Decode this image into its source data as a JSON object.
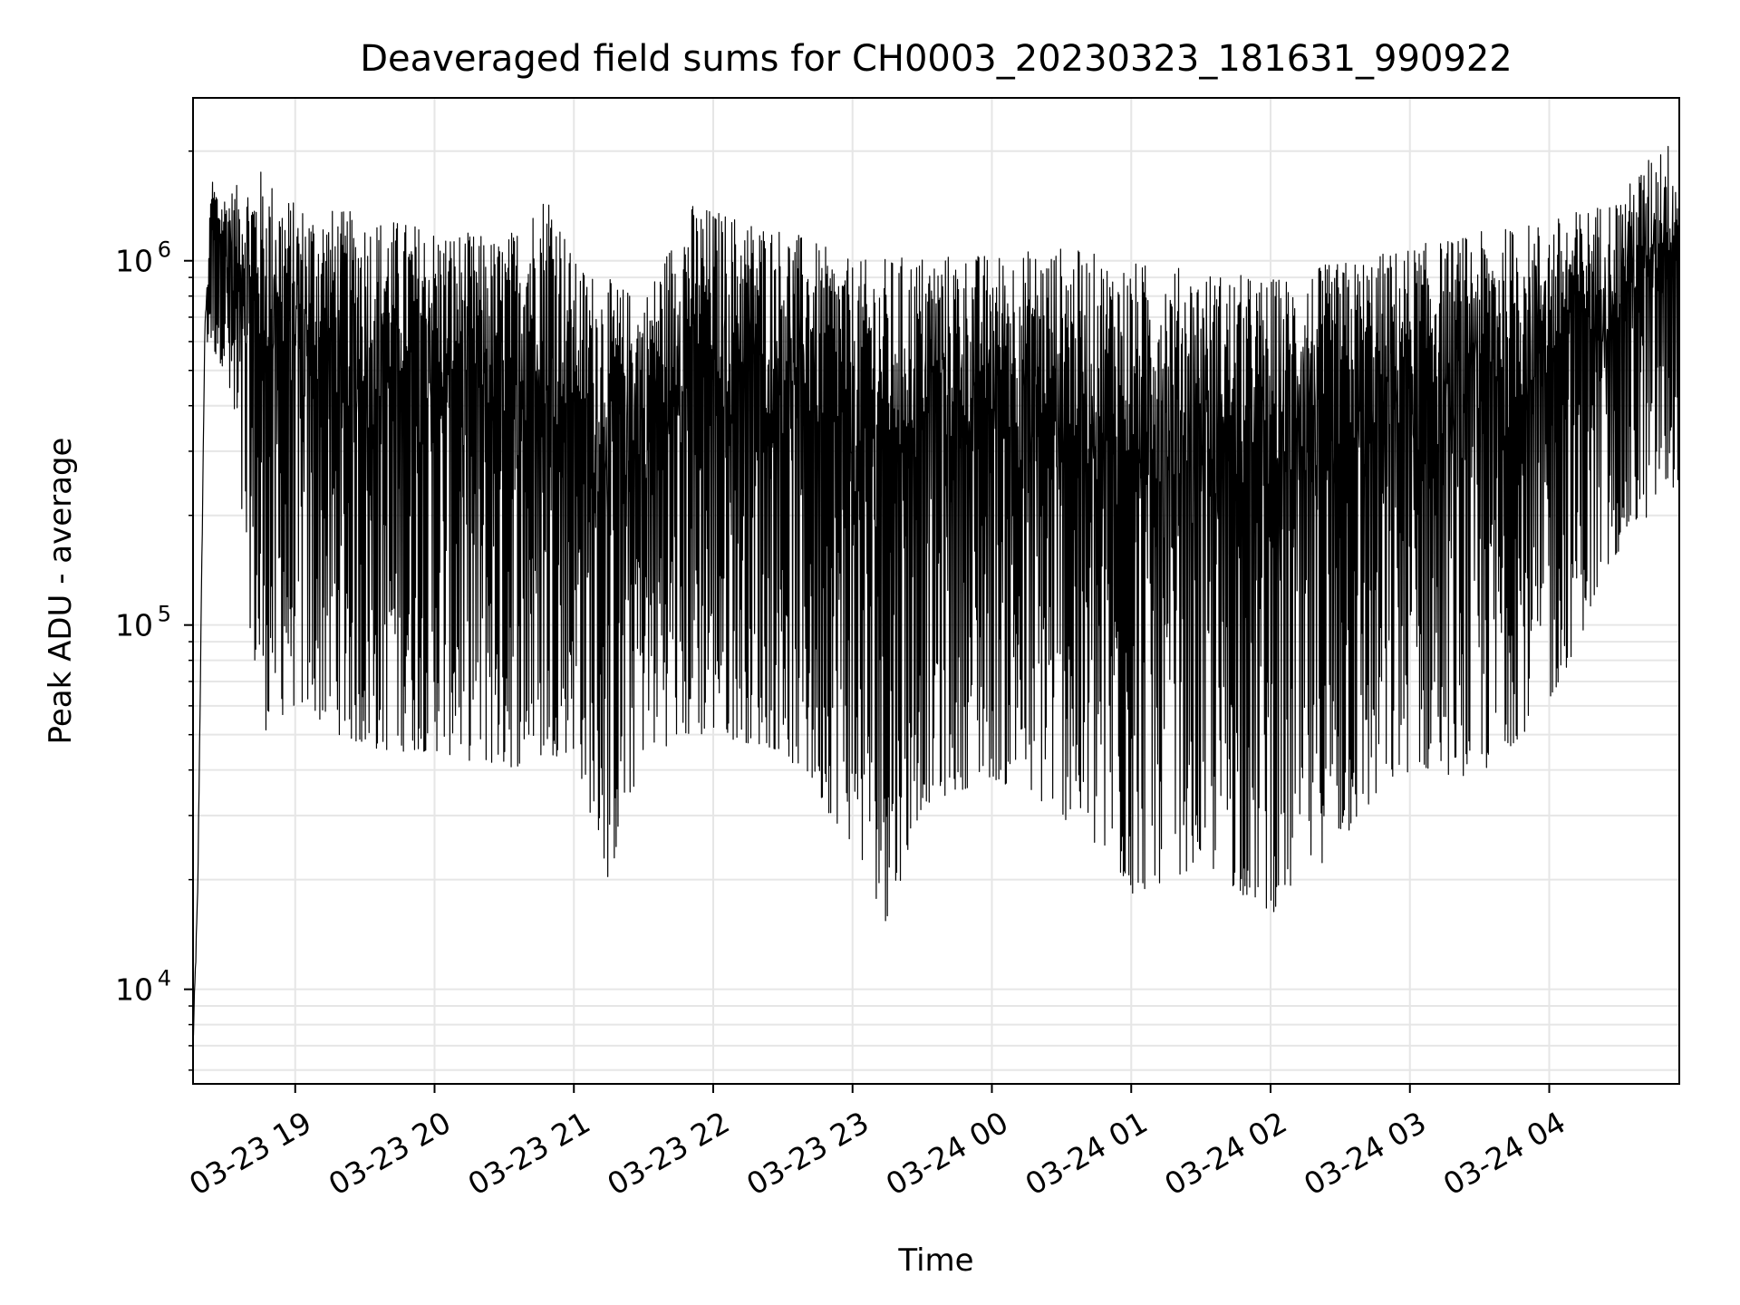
{
  "chart_data": {
    "type": "line",
    "title": "Deaveraged field sums for CH0003_20230323_181631_990922",
    "xlabel": "Time",
    "ylabel": "Peak ADU - average",
    "yscale": "log",
    "ylim": [
      5500,
      2800000
    ],
    "xlim": [
      "2023-03-23T18:16",
      "2023-03-24T04:56"
    ],
    "grid": true,
    "line_color": "#000000",
    "grid_color": "#e6e6e6",
    "xticks": [
      {
        "value": "2023-03-23T19:00",
        "label": "03-23 19"
      },
      {
        "value": "2023-03-23T20:00",
        "label": "03-23 20"
      },
      {
        "value": "2023-03-23T21:00",
        "label": "03-23 21"
      },
      {
        "value": "2023-03-23T22:00",
        "label": "03-23 22"
      },
      {
        "value": "2023-03-23T23:00",
        "label": "03-23 23"
      },
      {
        "value": "2023-03-24T00:00",
        "label": "03-24 00"
      },
      {
        "value": "2023-03-24T01:00",
        "label": "03-24 01"
      },
      {
        "value": "2023-03-24T02:00",
        "label": "03-24 02"
      },
      {
        "value": "2023-03-24T03:00",
        "label": "03-24 03"
      },
      {
        "value": "2023-03-24T04:00",
        "label": "03-24 04"
      }
    ],
    "yticks": [
      {
        "value": 10000,
        "base": "10",
        "exp": "4"
      },
      {
        "value": 100000,
        "base": "10",
        "exp": "5"
      },
      {
        "value": 1000000,
        "base": "10",
        "exp": "6"
      }
    ],
    "series": [
      {
        "style": "dense oscillating line",
        "envelope_upper": [
          [
            "2023-03-23T18:16",
            7000
          ],
          [
            "2023-03-23T18:18",
            18000
          ],
          [
            "2023-03-23T18:21",
            600000
          ],
          [
            "2023-03-23T18:24",
            1750000
          ],
          [
            "2023-03-23T18:28",
            1500000
          ],
          [
            "2023-03-23T18:45",
            1800000
          ],
          [
            "2023-03-23T19:00",
            1450000
          ],
          [
            "2023-03-23T19:30",
            1350000
          ],
          [
            "2023-03-23T20:00",
            1250000
          ],
          [
            "2023-03-23T20:30",
            1150000
          ],
          [
            "2023-03-23T20:50",
            1650000
          ],
          [
            "2023-03-23T21:00",
            1000000
          ],
          [
            "2023-03-23T21:30",
            800000
          ],
          [
            "2023-03-23T21:50",
            1450000
          ],
          [
            "2023-03-23T22:30",
            1250000
          ],
          [
            "2023-03-23T23:00",
            1000000
          ],
          [
            "2023-03-23T23:30",
            1050000
          ],
          [
            "2023-03-24T00:00",
            1050000
          ],
          [
            "2023-03-24T00:30",
            1100000
          ],
          [
            "2023-03-24T01:00",
            1000000
          ],
          [
            "2023-03-24T01:30",
            950000
          ],
          [
            "2023-03-24T02:00",
            900000
          ],
          [
            "2023-03-24T02:30",
            1000000
          ],
          [
            "2023-03-24T03:00",
            1100000
          ],
          [
            "2023-03-24T03:30",
            1200000
          ],
          [
            "2023-03-24T04:00",
            1300000
          ],
          [
            "2023-03-24T04:30",
            1500000
          ],
          [
            "2023-03-24T04:50",
            2200000
          ],
          [
            "2023-03-24T04:56",
            1800000
          ]
        ],
        "envelope_lower": [
          [
            "2023-03-23T18:16",
            7000
          ],
          [
            "2023-03-23T18:21",
            600000
          ],
          [
            "2023-03-23T18:30",
            500000
          ],
          [
            "2023-03-23T18:45",
            50000
          ],
          [
            "2023-03-23T19:00",
            60000
          ],
          [
            "2023-03-23T19:30",
            45000
          ],
          [
            "2023-03-23T20:00",
            45000
          ],
          [
            "2023-03-23T20:30",
            40000
          ],
          [
            "2023-03-23T21:00",
            45000
          ],
          [
            "2023-03-23T21:15",
            19500
          ],
          [
            "2023-03-23T21:30",
            45000
          ],
          [
            "2023-03-23T22:00",
            50000
          ],
          [
            "2023-03-23T22:30",
            45000
          ],
          [
            "2023-03-23T23:00",
            25000
          ],
          [
            "2023-03-23T23:15",
            15000
          ],
          [
            "2023-03-23T23:30",
            32000
          ],
          [
            "2023-03-24T00:00",
            38000
          ],
          [
            "2023-03-24T00:30",
            30000
          ],
          [
            "2023-03-24T01:00",
            18000
          ],
          [
            "2023-03-24T01:30",
            22000
          ],
          [
            "2023-03-24T02:00",
            16000
          ],
          [
            "2023-03-24T02:30",
            25000
          ],
          [
            "2023-03-24T03:00",
            40000
          ],
          [
            "2023-03-24T03:30",
            38000
          ],
          [
            "2023-03-24T04:00",
            60000
          ],
          [
            "2023-03-24T04:30",
            160000
          ],
          [
            "2023-03-24T04:56",
            250000
          ]
        ]
      }
    ]
  }
}
